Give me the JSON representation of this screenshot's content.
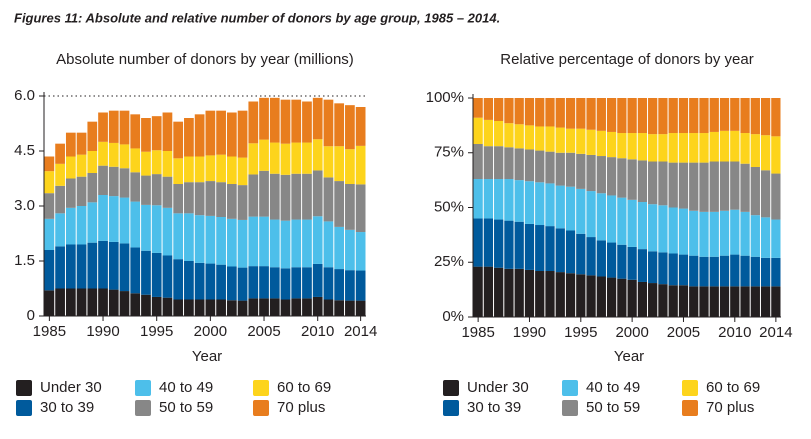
{
  "figure_title": "Figures 11: Absolute and relative number of donors by age group, 1985 – 2014.",
  "chart_data": [
    {
      "type": "stacked-bar",
      "title": "Absolute number of donors by year (millions)",
      "x_label": "Year",
      "x": [
        1985,
        1986,
        1987,
        1988,
        1989,
        1990,
        1991,
        1992,
        1993,
        1994,
        1995,
        1996,
        1997,
        1998,
        1999,
        2000,
        2001,
        2002,
        2003,
        2004,
        2005,
        2006,
        2007,
        2008,
        2009,
        2010,
        2011,
        2012,
        2013,
        2014
      ],
      "xlim": [
        1984.5,
        2014.5
      ],
      "xticks": [
        1985,
        1990,
        1995,
        2000,
        2005,
        2010,
        2014
      ],
      "ylim": [
        0,
        6
      ],
      "yticks": [
        0,
        1.5,
        {
          "value": 3,
          "label": "3.0"
        },
        4.5,
        {
          "value": 6,
          "label": "6.0"
        }
      ],
      "series": [
        {
          "name": "Under 30",
          "color": "#231f20",
          "values": [
            0.7,
            0.75,
            0.75,
            0.75,
            0.75,
            0.75,
            0.72,
            0.68,
            0.62,
            0.58,
            0.52,
            0.5,
            0.45,
            0.45,
            0.45,
            0.45,
            0.45,
            0.43,
            0.42,
            0.48,
            0.48,
            0.48,
            0.45,
            0.48,
            0.48,
            0.52,
            0.45,
            0.43,
            0.42,
            0.42
          ]
        },
        {
          "name": "30 to 39",
          "color": "#005a9c",
          "values": [
            1.1,
            1.15,
            1.2,
            1.2,
            1.25,
            1.3,
            1.3,
            1.3,
            1.25,
            1.2,
            1.2,
            1.15,
            1.1,
            1.05,
            1.0,
            0.98,
            0.95,
            0.92,
            0.9,
            0.88,
            0.88,
            0.85,
            0.85,
            0.85,
            0.85,
            0.9,
            0.88,
            0.85,
            0.83,
            0.82
          ]
        },
        {
          "name": "40 to 49",
          "color": "#4dbfea",
          "values": [
            0.85,
            0.9,
            1.0,
            1.05,
            1.1,
            1.25,
            1.25,
            1.25,
            1.25,
            1.25,
            1.3,
            1.3,
            1.25,
            1.3,
            1.3,
            1.3,
            1.3,
            1.3,
            1.3,
            1.35,
            1.35,
            1.3,
            1.3,
            1.3,
            1.3,
            1.3,
            1.25,
            1.15,
            1.1,
            1.05
          ]
        },
        {
          "name": "50 to 59",
          "color": "#878787",
          "values": [
            0.7,
            0.75,
            0.8,
            0.8,
            0.8,
            0.8,
            0.8,
            0.8,
            0.8,
            0.8,
            0.85,
            0.85,
            0.8,
            0.85,
            0.9,
            0.95,
            0.95,
            0.95,
            0.95,
            1.15,
            1.25,
            1.25,
            1.25,
            1.25,
            1.25,
            1.25,
            1.2,
            1.25,
            1.25,
            1.3
          ]
        },
        {
          "name": "60 to 69",
          "color": "#fdd41c",
          "values": [
            0.6,
            0.6,
            0.6,
            0.6,
            0.6,
            0.65,
            0.65,
            0.65,
            0.65,
            0.65,
            0.65,
            0.7,
            0.7,
            0.7,
            0.7,
            0.7,
            0.75,
            0.75,
            0.75,
            0.85,
            0.85,
            0.85,
            0.85,
            0.85,
            0.85,
            0.85,
            0.85,
            0.95,
            0.95,
            1.05
          ]
        },
        {
          "name": "70 plus",
          "color": "#e87d1e",
          "values": [
            0.4,
            0.55,
            0.65,
            0.6,
            0.8,
            0.8,
            0.88,
            0.92,
            0.93,
            0.92,
            0.93,
            1.05,
            1.0,
            1.05,
            1.15,
            1.22,
            1.2,
            1.2,
            1.28,
            1.14,
            1.14,
            1.22,
            1.2,
            1.17,
            1.12,
            1.13,
            1.27,
            1.17,
            1.2,
            1.06
          ]
        }
      ]
    },
    {
      "type": "stacked-bar",
      "title": "Relative percentage of donors by year",
      "x_label": "Year",
      "x": [
        1985,
        1986,
        1987,
        1988,
        1989,
        1990,
        1991,
        1992,
        1993,
        1994,
        1995,
        1996,
        1997,
        1998,
        1999,
        2000,
        2001,
        2002,
        2003,
        2004,
        2005,
        2006,
        2007,
        2008,
        2009,
        2010,
        2011,
        2012,
        2013,
        2014
      ],
      "xlim": [
        1984.5,
        2014.5
      ],
      "xticks": [
        1985,
        1990,
        1995,
        2000,
        2005,
        2010,
        2014
      ],
      "ylim": [
        0,
        100
      ],
      "yticks": [
        {
          "value": 0,
          "label": "0%"
        },
        {
          "value": 25,
          "label": "25%"
        },
        {
          "value": 50,
          "label": "50%"
        },
        {
          "value": 75,
          "label": "75%"
        },
        {
          "value": 100,
          "label": "100%"
        }
      ],
      "series": [
        {
          "name": "Under 30",
          "color": "#231f20",
          "values": [
            23,
            23,
            22.5,
            22,
            22,
            21.5,
            21,
            21,
            20.5,
            20,
            19.5,
            19,
            18.5,
            18,
            17.5,
            17,
            16,
            15.5,
            15,
            14.5,
            14.5,
            14,
            14,
            14,
            14,
            14,
            14,
            14,
            14,
            14
          ]
        },
        {
          "name": "30 to 39",
          "color": "#005a9c",
          "values": [
            22,
            22,
            22,
            22,
            21.5,
            21,
            21,
            20.5,
            20,
            19.5,
            18.5,
            17.5,
            16.5,
            16,
            15.5,
            15,
            15,
            14.5,
            14.5,
            14.5,
            14,
            14,
            13.5,
            13.5,
            14,
            14.5,
            14,
            13.5,
            13,
            13
          ]
        },
        {
          "name": "40 to 49",
          "color": "#4dbfea",
          "values": [
            18,
            18,
            18.5,
            19,
            19,
            19.5,
            19.5,
            19.5,
            19.5,
            20,
            20.5,
            21,
            21.5,
            21.5,
            21.5,
            21.5,
            21.5,
            21.5,
            21.5,
            21,
            21,
            20.5,
            20.5,
            20.5,
            20.5,
            20.5,
            20,
            19,
            18.5,
            17.5
          ]
        },
        {
          "name": "50 to 59",
          "color": "#878787",
          "values": [
            16,
            15,
            15,
            14.5,
            14.5,
            14.5,
            14.5,
            14.5,
            15,
            15.5,
            16,
            16.5,
            17,
            17.5,
            18,
            18.5,
            19,
            19.5,
            20,
            20.5,
            21,
            22,
            22.5,
            23,
            22.5,
            22,
            22,
            22,
            21.5,
            21
          ]
        },
        {
          "name": "60 to 69",
          "color": "#fdd41c",
          "values": [
            12,
            12,
            11.5,
            11,
            11,
            11,
            11,
            11.5,
            11.5,
            11,
            11.5,
            11.5,
            11.5,
            11.5,
            11.5,
            12,
            12.5,
            12.5,
            12.5,
            13.5,
            13.5,
            13.5,
            13.5,
            13.5,
            14,
            14,
            14,
            15,
            16,
            17
          ]
        },
        {
          "name": "70 plus",
          "color": "#e87d1e",
          "values": [
            9,
            10,
            10.5,
            11.5,
            12,
            12.5,
            13,
            13,
            13.5,
            14,
            14,
            14.5,
            15,
            15.5,
            16,
            16,
            16,
            16.5,
            16.5,
            16,
            16,
            16,
            16,
            15.5,
            15,
            15,
            16,
            16.5,
            17,
            17.5
          ]
        }
      ]
    }
  ]
}
